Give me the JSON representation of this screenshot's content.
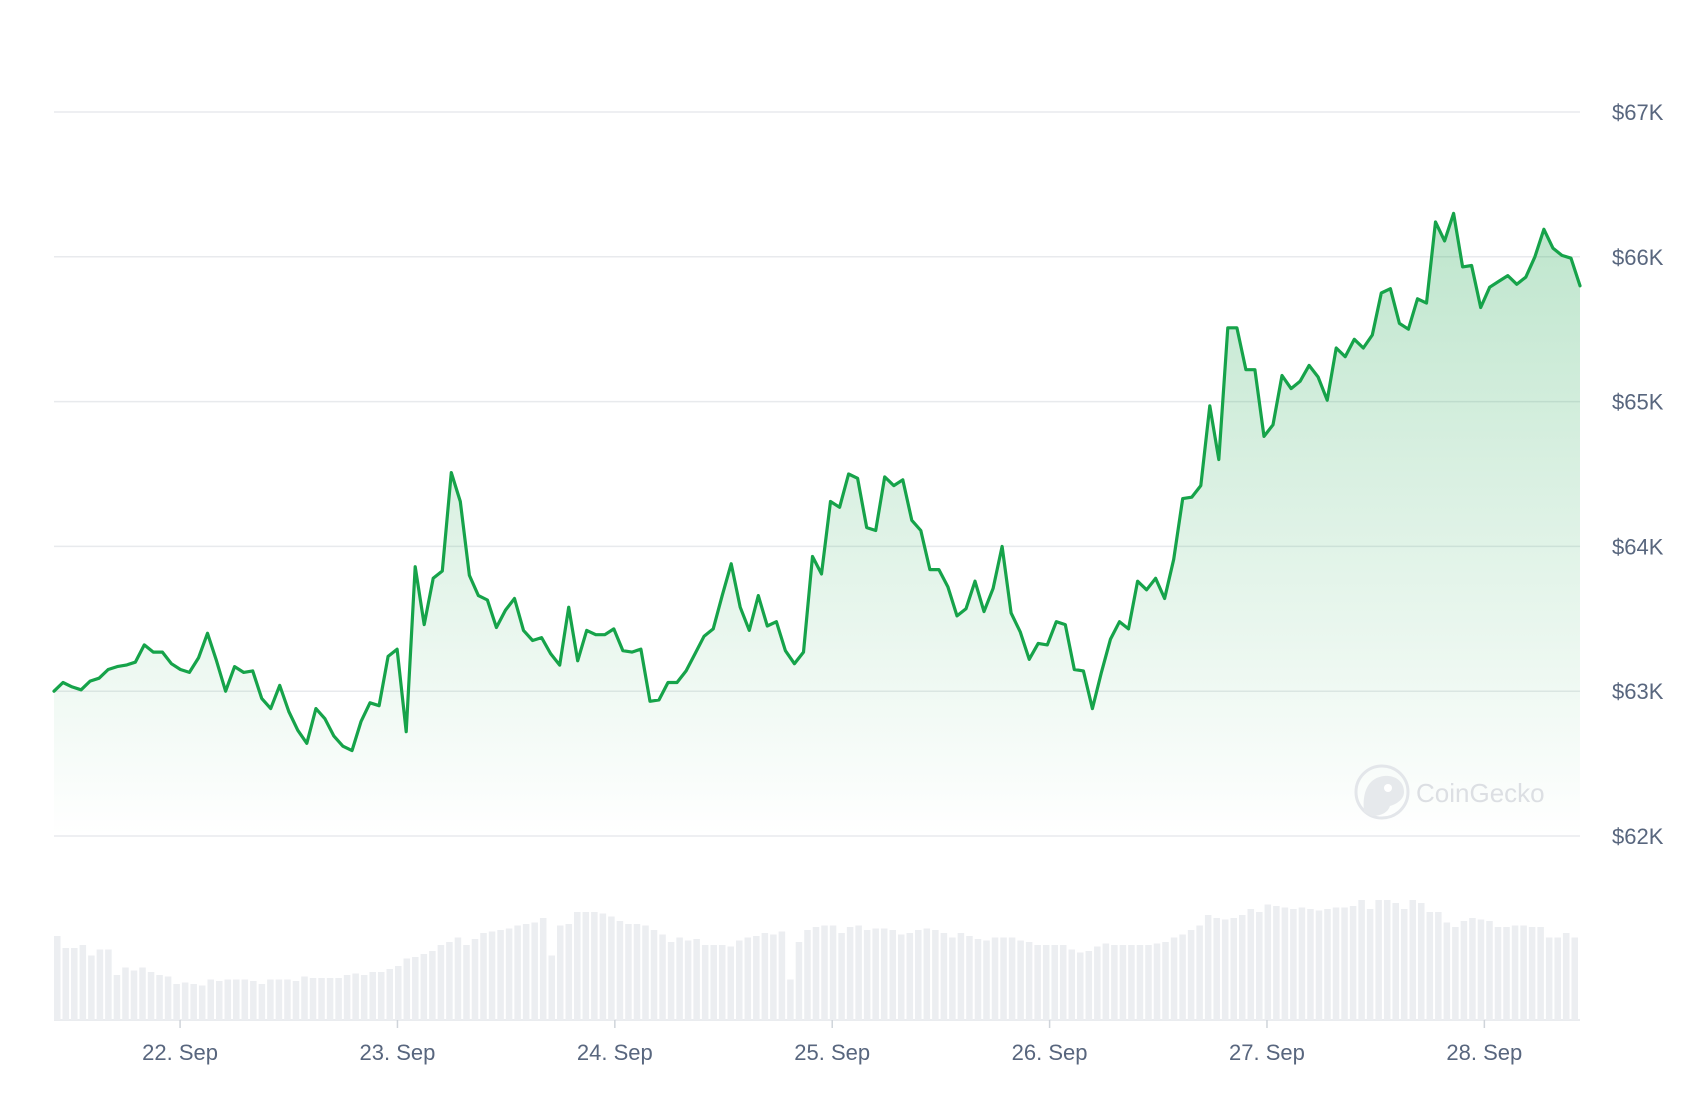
{
  "chart_data": {
    "type": "area",
    "watermark": "CoinGecko",
    "ylim": [
      62000,
      67000
    ],
    "yticks": [
      62000,
      63000,
      64000,
      65000,
      66000,
      67000
    ],
    "ytick_labels": [
      "$62K",
      "$63K",
      "$64K",
      "$65K",
      "$66K",
      "$67K"
    ],
    "xticks": [
      "22. Sep",
      "23. Sep",
      "24. Sep",
      "25. Sep",
      "26. Sep",
      "27. Sep",
      "28. Sep"
    ],
    "x_start_day": 21.42,
    "x_end_day": 28.44,
    "grid": true,
    "legend": "none",
    "colors": {
      "line": "#16a34a",
      "area_top": "#16a34a",
      "volume": "#eceef1",
      "grid": "#e8eaed",
      "tick_text": "#58667e"
    },
    "price_series": [
      63000,
      63060,
      63030,
      63010,
      63070,
      63090,
      63150,
      63170,
      63180,
      63200,
      63320,
      63270,
      63270,
      63190,
      63150,
      63130,
      63230,
      63400,
      63210,
      63000,
      63170,
      63130,
      63140,
      62950,
      62880,
      63040,
      62860,
      62730,
      62640,
      62880,
      62810,
      62690,
      62620,
      62590,
      62790,
      62920,
      62900,
      63240,
      63290,
      62720,
      63860,
      63460,
      63780,
      63830,
      64510,
      64310,
      63800,
      63660,
      63630,
      63440,
      63560,
      63640,
      63420,
      63350,
      63370,
      63260,
      63180,
      63580,
      63210,
      63420,
      63390,
      63390,
      63430,
      63280,
      63270,
      63290,
      62930,
      62940,
      63060,
      63060,
      63140,
      63260,
      63380,
      63430,
      63660,
      63880,
      63580,
      63420,
      63660,
      63450,
      63480,
      63280,
      63190,
      63270,
      63930,
      63810,
      64310,
      64270,
      64500,
      64470,
      64130,
      64110,
      64480,
      64420,
      64460,
      64180,
      64110,
      63840,
      63840,
      63720,
      63520,
      63570,
      63760,
      63550,
      63710,
      64000,
      63540,
      63410,
      63220,
      63330,
      63320,
      63480,
      63460,
      63150,
      63140,
      62880,
      63130,
      63360,
      63480,
      63430,
      63760,
      63700,
      63780,
      63640,
      63910,
      64330,
      64340,
      64420,
      64970,
      64600,
      65510,
      65510,
      65220,
      65220,
      64760,
      64840,
      65180,
      65090,
      65140,
      65250,
      65170,
      65010,
      65370,
      65310,
      65430,
      65370,
      65460,
      65750,
      65780,
      65540,
      65500,
      65710,
      65680,
      66240,
      66110,
      66300,
      65930,
      65940,
      65650,
      65790,
      65830,
      65870,
      65810,
      65860,
      66000,
      66190,
      66060,
      66010,
      65990,
      65800
    ],
    "volume_series": [
      0.56,
      0.48,
      0.48,
      0.5,
      0.43,
      0.47,
      0.47,
      0.3,
      0.35,
      0.33,
      0.35,
      0.32,
      0.3,
      0.29,
      0.24,
      0.25,
      0.24,
      0.23,
      0.27,
      0.26,
      0.27,
      0.27,
      0.27,
      0.26,
      0.24,
      0.27,
      0.27,
      0.27,
      0.26,
      0.29,
      0.28,
      0.28,
      0.28,
      0.28,
      0.3,
      0.31,
      0.3,
      0.32,
      0.32,
      0.34,
      0.36,
      0.41,
      0.42,
      0.44,
      0.46,
      0.5,
      0.52,
      0.55,
      0.5,
      0.54,
      0.58,
      0.59,
      0.6,
      0.61,
      0.63,
      0.64,
      0.65,
      0.68,
      0.43,
      0.63,
      0.64,
      0.72,
      0.72,
      0.72,
      0.71,
      0.69,
      0.66,
      0.64,
      0.64,
      0.63,
      0.6,
      0.57,
      0.52,
      0.55,
      0.53,
      0.54,
      0.5,
      0.5,
      0.5,
      0.49,
      0.53,
      0.55,
      0.56,
      0.58,
      0.57,
      0.59,
      0.27,
      0.52,
      0.6,
      0.62,
      0.63,
      0.63,
      0.58,
      0.62,
      0.63,
      0.6,
      0.61,
      0.61,
      0.6,
      0.57,
      0.58,
      0.6,
      0.61,
      0.6,
      0.58,
      0.55,
      0.58,
      0.56,
      0.54,
      0.53,
      0.55,
      0.55,
      0.55,
      0.53,
      0.52,
      0.5,
      0.5,
      0.5,
      0.5,
      0.47,
      0.45,
      0.46,
      0.49,
      0.51,
      0.5,
      0.5,
      0.5,
      0.5,
      0.5,
      0.51,
      0.52,
      0.55,
      0.57,
      0.6,
      0.63,
      0.7,
      0.68,
      0.67,
      0.68,
      0.7,
      0.74,
      0.72,
      0.77,
      0.76,
      0.75,
      0.74,
      0.75,
      0.74,
      0.73,
      0.74,
      0.75,
      0.75,
      0.76,
      0.8,
      0.74,
      0.8,
      0.8,
      0.78,
      0.74,
      0.8,
      0.78,
      0.72,
      0.72,
      0.65,
      0.62,
      0.66,
      0.68,
      0.67,
      0.66,
      0.62,
      0.62,
      0.63,
      0.63,
      0.62,
      0.62,
      0.55,
      0.55,
      0.58,
      0.55
    ]
  }
}
